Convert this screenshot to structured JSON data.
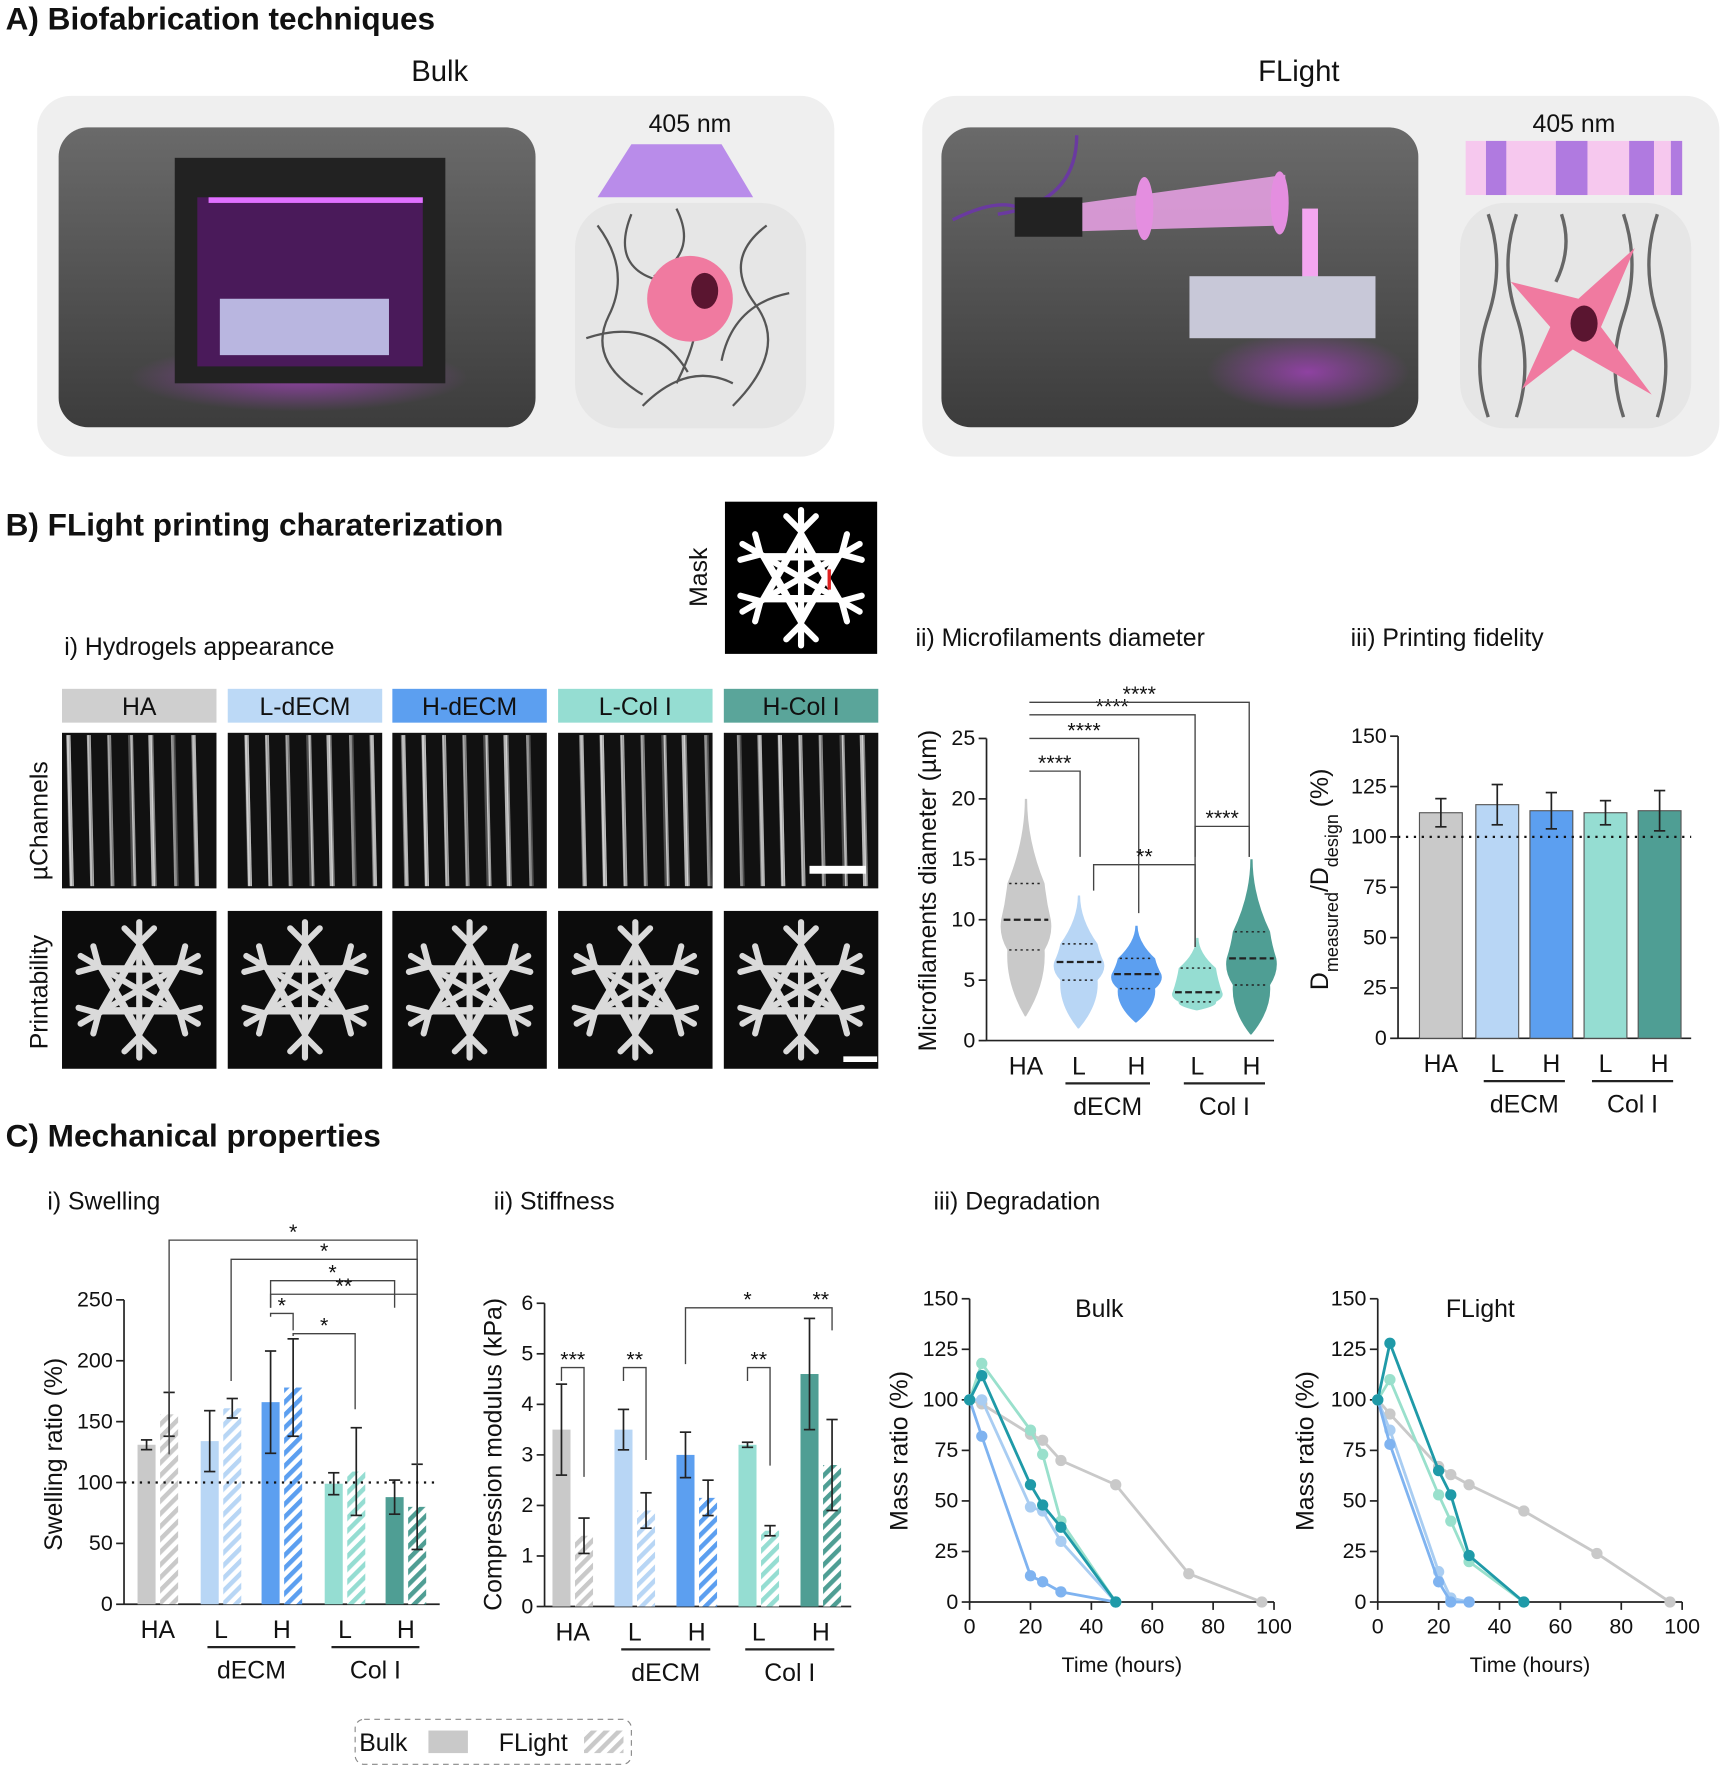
{
  "texts": {
    "A": {
      "title": "A) Biofabrication techniques",
      "bulk": "Bulk",
      "flight": "FLight",
      "wavelength_bulk": "405 nm",
      "wavelength_flight": "405 nm"
    },
    "B": {
      "title": "B) FLight printing charaterization",
      "mask": "Mask",
      "appearance": "i) Hydrogels appearance",
      "hydrogels": [
        "HA",
        "L-dECM",
        "H-dECM",
        "L-Col I",
        "H-Col I"
      ],
      "hydrogel_colors": [
        "#cfcfcf",
        "#bcd9f6",
        "#5c9ff0",
        "#95ddd2",
        "#5aa59a"
      ],
      "rows": [
        "µChannels",
        "Printability"
      ]
    },
    "C": {
      "title": "C) Mechanical properties",
      "degradation": "iii) Degradation"
    }
  },
  "chart_data": [
    {
      "type": "violin",
      "title": "ii) Microfilaments diameter",
      "ylabel": "Microfilaments diameter (µm)",
      "categories": [
        "HA",
        "L",
        "H",
        "L",
        "H"
      ],
      "group_labels": [
        "dECM",
        "Col I"
      ],
      "colors": [
        "#c9c9c9",
        "#b8d6f5",
        "#5c9ff0",
        "#95ddd2",
        "#4f9e94"
      ],
      "min": [
        2,
        1,
        1.5,
        2.5,
        0.5
      ],
      "q1": [
        7.5,
        5,
        4.3,
        3.2,
        4.6
      ],
      "median": [
        10,
        6.5,
        5.5,
        4,
        6.8
      ],
      "q3": [
        13,
        8,
        6.8,
        6,
        9
      ],
      "max": [
        20,
        12,
        9.5,
        8.5,
        15
      ],
      "ylim": [
        0,
        25
      ],
      "yticks": [
        0,
        5,
        10,
        15,
        20,
        25
      ],
      "significance": [
        "****",
        "****",
        "****",
        "****",
        "**",
        "****"
      ]
    },
    {
      "type": "bar",
      "title": "iii) Printing fidelity",
      "ylabel_parts": [
        "D",
        "measured",
        "/D",
        "design",
        " (%)"
      ],
      "categories": [
        "HA",
        "L",
        "H",
        "L",
        "H"
      ],
      "group_labels": [
        "dECM",
        "Col I"
      ],
      "colors": [
        "#c9c9c9",
        "#b8d6f5",
        "#5c9ff0",
        "#95ddd2",
        "#4f9e94"
      ],
      "values": [
        112,
        116,
        113,
        112,
        113
      ],
      "errors": [
        7,
        10,
        9,
        6,
        10
      ],
      "ylim": [
        0,
        150
      ],
      "yticks": [
        0,
        25,
        50,
        75,
        100,
        125,
        150
      ],
      "reference_line": 100
    },
    {
      "type": "grouped_bar",
      "title": "i) Swelling",
      "ylabel": "Swelling ratio (%)",
      "categories": [
        "HA",
        "L",
        "H",
        "L",
        "H"
      ],
      "group_labels": [
        "dECM",
        "Col I"
      ],
      "colors": [
        "#c9c9c9",
        "#b8d6f5",
        "#5c9ff0",
        "#95ddd2",
        "#4f9e94"
      ],
      "series": [
        {
          "name": "Bulk",
          "values": [
            131,
            134,
            166,
            99,
            88
          ],
          "errors": [
            4,
            25,
            42,
            9,
            14
          ]
        },
        {
          "name": "FLight",
          "values": [
            156,
            161,
            178,
            109,
            80
          ],
          "errors": [
            18,
            8,
            40,
            36,
            35
          ]
        }
      ],
      "ylim": [
        0,
        250
      ],
      "yticks": [
        0,
        50,
        100,
        150,
        200,
        250
      ],
      "reference_line": 100,
      "significance": [
        "*",
        "*",
        "*",
        "**",
        "*",
        "*"
      ]
    },
    {
      "type": "grouped_bar",
      "title": "ii) Stiffness",
      "ylabel": "Compression modulus (kPa)",
      "categories": [
        "HA",
        "L",
        "H",
        "L",
        "H"
      ],
      "group_labels": [
        "dECM",
        "Col I"
      ],
      "colors": [
        "#c9c9c9",
        "#b8d6f5",
        "#5c9ff0",
        "#95ddd2",
        "#4f9e94"
      ],
      "series": [
        {
          "values": [
            3.5,
            3.5,
            3.0,
            3.2,
            4.6
          ],
          "errors": [
            0.9,
            0.4,
            0.45,
            0.05,
            1.1
          ]
        },
        {
          "values": [
            1.4,
            1.9,
            2.15,
            1.5,
            2.8
          ],
          "errors": [
            0.35,
            0.35,
            0.35,
            0.1,
            0.9
          ]
        }
      ],
      "ylim": [
        0,
        6
      ],
      "yticks": [
        0,
        1,
        2,
        3,
        4,
        5,
        6
      ],
      "significance": [
        "***",
        "**",
        "*",
        "**",
        "**"
      ]
    },
    {
      "type": "line",
      "title": "Bulk",
      "xlabel": "Time (hours)",
      "ylabel": "Mass ratio (%)",
      "xlim": [
        0,
        100
      ],
      "xticks": [
        0,
        20,
        40,
        60,
        80,
        100
      ],
      "ylim": [
        0,
        150
      ],
      "yticks": [
        0,
        25,
        50,
        75,
        100,
        125,
        150
      ],
      "series": [
        {
          "color": "#c9c9c9",
          "x": [
            0,
            4,
            20,
            24,
            30,
            48,
            72,
            96
          ],
          "values": [
            100,
            98,
            83,
            80,
            70,
            58,
            14,
            0
          ]
        },
        {
          "color": "#a9cdf2",
          "x": [
            0,
            4,
            20,
            24,
            30,
            48
          ],
          "values": [
            100,
            100,
            47,
            45,
            30,
            0
          ]
        },
        {
          "color": "#7fb3f0",
          "x": [
            0,
            4,
            20,
            24,
            30,
            48
          ],
          "values": [
            100,
            82,
            13,
            10,
            5,
            0
          ]
        },
        {
          "color": "#99e0cc",
          "x": [
            0,
            4,
            20,
            24,
            30,
            48
          ],
          "values": [
            100,
            118,
            85,
            73,
            40,
            0
          ]
        },
        {
          "color": "#1f9aa8",
          "x": [
            0,
            4,
            20,
            24,
            30,
            48
          ],
          "values": [
            100,
            112,
            58,
            48,
            37,
            0
          ]
        }
      ]
    },
    {
      "type": "line",
      "title": "FLight",
      "xlabel": "Time (hours)",
      "ylabel": "Mass ratio (%)",
      "xlim": [
        0,
        100
      ],
      "xticks": [
        0,
        20,
        40,
        60,
        80,
        100
      ],
      "ylim": [
        0,
        150
      ],
      "yticks": [
        0,
        25,
        50,
        75,
        100,
        125,
        150
      ],
      "series": [
        {
          "color": "#c9c9c9",
          "x": [
            0,
            4,
            20,
            24,
            30,
            48,
            72,
            96
          ],
          "values": [
            100,
            93,
            67,
            63,
            58,
            45,
            24,
            0
          ]
        },
        {
          "color": "#a9cdf2",
          "x": [
            0,
            4,
            20,
            24,
            30
          ],
          "values": [
            100,
            85,
            15,
            2,
            0
          ]
        },
        {
          "color": "#7fb3f0",
          "x": [
            0,
            4,
            20,
            24,
            30
          ],
          "values": [
            100,
            78,
            10,
            0,
            0
          ]
        },
        {
          "color": "#99e0cc",
          "x": [
            0,
            4,
            20,
            24,
            30,
            48
          ],
          "values": [
            100,
            110,
            53,
            40,
            20,
            0
          ]
        },
        {
          "color": "#1f9aa8",
          "x": [
            0,
            4,
            20,
            24,
            30,
            48
          ],
          "values": [
            100,
            128,
            65,
            53,
            23,
            0
          ]
        }
      ]
    }
  ]
}
